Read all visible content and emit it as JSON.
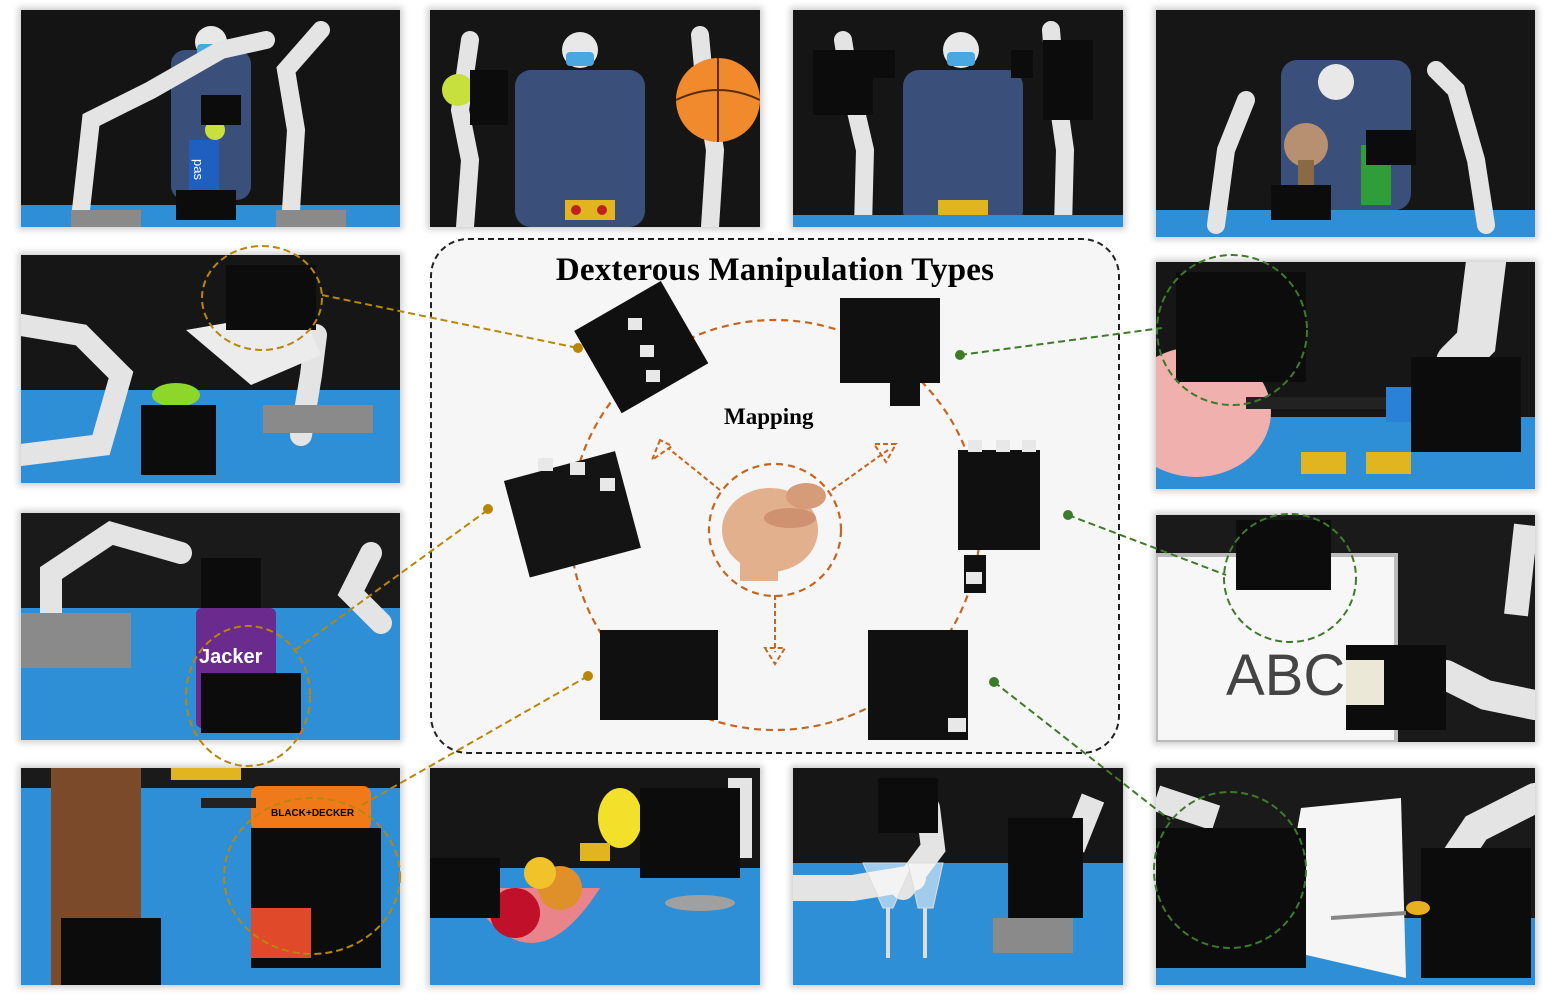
{
  "figure": {
    "center_title": "Dexterous Manipulation Types",
    "mapping_label": "Mapping"
  },
  "photo_text": {
    "whiteboard_writing": "ABC",
    "bag_text": "pas",
    "cup_text": "Jacker",
    "drill_text": "BLACK+DECKER"
  },
  "colors": {
    "ochre_connector": "#b8860b",
    "green_connector": "#3f7a2b",
    "mapping_circle": "#c8641e",
    "table_blue": "#2f8fd6",
    "backdrop": "#161616"
  },
  "photos": [
    {
      "id": "teleop-bag-lift",
      "icon": "robot-arm-photo"
    },
    {
      "id": "teleop-ball-toss",
      "icon": "robot-arm-photo"
    },
    {
      "id": "teleop-open-hands",
      "icon": "robot-arm-photo"
    },
    {
      "id": "teleop-flower-bottle",
      "icon": "robot-arm-photo"
    },
    {
      "id": "pour-water",
      "icon": "robot-arm-photo"
    },
    {
      "id": "balloon-pinch",
      "icon": "robot-arm-photo"
    },
    {
      "id": "grasp-cup",
      "icon": "robot-arm-photo"
    },
    {
      "id": "whiteboard-write",
      "icon": "robot-arm-photo"
    },
    {
      "id": "drill-grip",
      "icon": "robot-arm-photo"
    },
    {
      "id": "fruit-bowl",
      "icon": "robot-arm-photo"
    },
    {
      "id": "wine-glass",
      "icon": "robot-arm-photo"
    },
    {
      "id": "paper-scissors",
      "icon": "robot-arm-photo"
    }
  ]
}
